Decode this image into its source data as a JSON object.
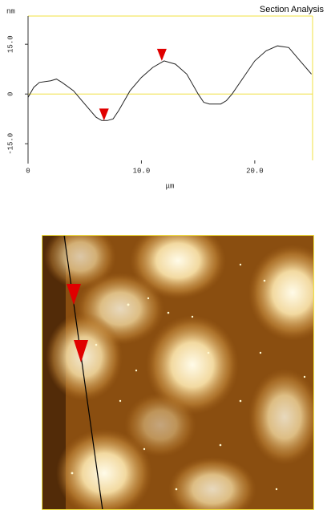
{
  "chart_data": {
    "type": "line",
    "title": "Section Analysis",
    "y_unit": "nm",
    "x_label": "μm",
    "x": [
      0,
      0.5,
      1,
      2,
      2.5,
      3,
      4,
      5,
      6,
      6.5,
      7,
      7.5,
      8,
      9,
      10,
      11,
      12,
      13,
      14,
      15,
      15.5,
      16,
      17,
      17.5,
      18,
      19,
      20,
      21,
      22,
      23,
      24,
      25
    ],
    "series": [
      {
        "color": "#222222",
        "values": [
          -1,
          2,
          3.5,
          4,
          4.5,
          3.5,
          1,
          -3,
          -7,
          -8,
          -8,
          -7.5,
          -5,
          1,
          5,
          8,
          10,
          9,
          6,
          0,
          -2.5,
          -3,
          -3,
          -2,
          0,
          5,
          10,
          13,
          14.5,
          14,
          10,
          6
        ]
      }
    ],
    "cursors": {
      "color": "#e00000",
      "x": [
        6.7,
        11.8
      ],
      "values": [
        -8,
        10
      ]
    },
    "xlim": [
      0,
      25.1
    ],
    "ylim": [
      -20,
      23.5
    ],
    "xticks": [
      0,
      {
        "value": 10,
        "label": "10.0"
      },
      {
        "value": 20,
        "label": "20.0"
      }
    ],
    "yticks": [
      {
        "value": 15,
        "label": "15.0"
      },
      0,
      {
        "value": -15,
        "label": "-15.0"
      }
    ],
    "zero_line_color": "#f0e040",
    "frame_color": "#f0e040"
  }
}
